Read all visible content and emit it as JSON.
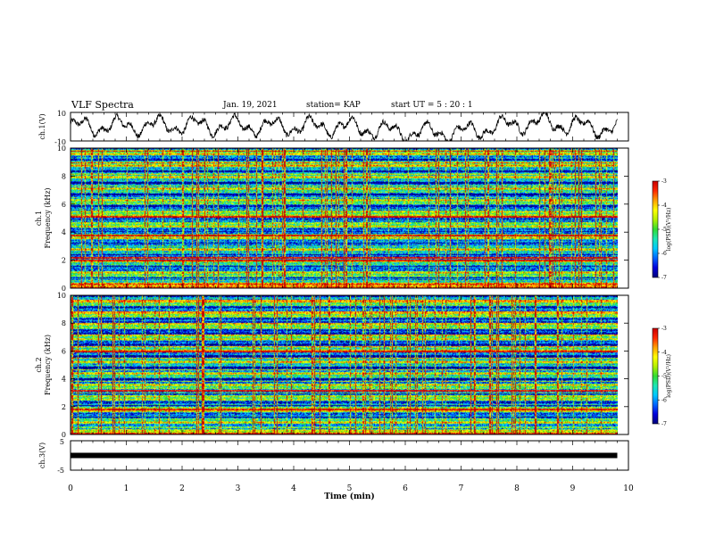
{
  "header": {
    "title": "VLF Spectra",
    "date": "Jan. 19, 2021",
    "station": "station= KAP",
    "start": "start  UT =   5 : 20 : 1"
  },
  "chart_data": {
    "type": "heatmap",
    "title": "VLF Spectra",
    "xlabel": "Time  (min)",
    "xlim": [
      0,
      10
    ],
    "x_ticks": [
      "0",
      "1",
      "2",
      "3",
      "4",
      "5",
      "6",
      "7",
      "8",
      "9",
      "10"
    ],
    "panels": [
      {
        "id": "ch1_waveform",
        "type": "line",
        "ylabel": "ch.1(V)",
        "ylim": [
          -10,
          10
        ],
        "y_ticks": [
          "10",
          "-10"
        ],
        "data_end_min": 9.8,
        "envelope": {
          "x": [
            0,
            2,
            4,
            5,
            6,
            7,
            8,
            8.5,
            9,
            9.8
          ],
          "center": [
            0,
            1,
            0,
            0,
            -4,
            -4,
            2,
            3,
            1,
            -2
          ]
        }
      },
      {
        "id": "ch1_spectrogram",
        "type": "heatmap",
        "ylabel": "ch.1\nFrequency  (kHz)",
        "ylim": [
          0,
          10
        ],
        "y_ticks": [
          "0",
          "2",
          "4",
          "6",
          "8",
          "10"
        ],
        "data_end_min": 9.8,
        "strong_lines_khz": [
          2.0,
          2.2,
          3.8,
          5.1
        ],
        "colorbar": {
          "label": "log(PSD)(V²/Hz)",
          "range": [
            -7,
            -3
          ],
          "ticks": [
            "-3",
            "-4",
            "-5",
            "-6",
            "-7"
          ]
        }
      },
      {
        "id": "ch2_spectrogram",
        "type": "heatmap",
        "ylabel": "ch.2\nFrequency  (kHz)",
        "ylim": [
          0,
          10
        ],
        "y_ticks": [
          "0",
          "2",
          "4",
          "6",
          "8",
          "10"
        ],
        "data_end_min": 9.8,
        "strong_lines_khz": [
          1.8,
          3.2,
          6.0
        ],
        "colorbar": {
          "label": "log(PSD)(V²/Hz)",
          "range": [
            -7,
            -3
          ],
          "ticks": [
            "-3",
            "-4",
            "-5",
            "-6",
            "-7"
          ]
        }
      },
      {
        "id": "ch3_level",
        "type": "line",
        "ylabel": "ch.3(V)",
        "ylim": [
          -5,
          5
        ],
        "y_ticks": [
          "5",
          "-5"
        ],
        "data_end_min": 9.8,
        "level_v": 0
      }
    ],
    "colormap": [
      "#00007a",
      "#0000dc",
      "#0064ff",
      "#00c8ff",
      "#1ee6b4",
      "#32dc32",
      "#b4f000",
      "#ffff00",
      "#ffa000",
      "#ff2800",
      "#c80000"
    ]
  }
}
